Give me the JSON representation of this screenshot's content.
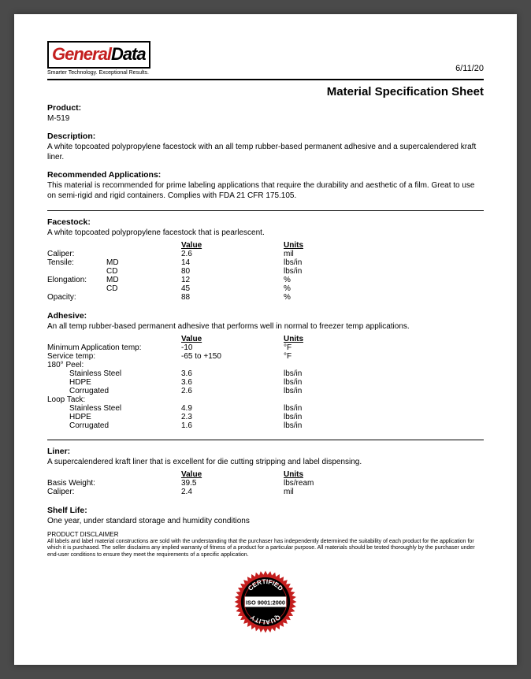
{
  "header": {
    "logo_general": "General",
    "logo_data": "Data",
    "tagline": "Smarter Technology. Exceptional Results.",
    "date": "6/11/20"
  },
  "title": "Material Specification Sheet",
  "product": {
    "label": "Product:",
    "value": "M-519"
  },
  "description": {
    "label": "Description:",
    "value": "A white topcoated polypropylene facestock with an all temp rubber-based permanent adhesive and a supercalendered kraft liner."
  },
  "recommended": {
    "label": "Recommended Applications:",
    "value": "This material is recommended for prime labeling applications that require the durability and aesthetic of a film. Great to use on semi-rigid and rigid containers. Complies with FDA 21 CFR 175.105."
  },
  "facestock": {
    "label": "Facestock:",
    "text": "A white topcoated polypropylene facestock that is pearlescent.",
    "head_value": "Value",
    "head_units": "Units",
    "rows": [
      {
        "name": "Caliper:",
        "sub": "",
        "value": "2.6",
        "units": "mil"
      },
      {
        "name": "Tensile:",
        "sub": "MD",
        "value": "14",
        "units": "lbs/in"
      },
      {
        "name": "",
        "sub": "CD",
        "value": "80",
        "units": "lbs/in"
      },
      {
        "name": "Elongation:",
        "sub": "MD",
        "value": "12",
        "units": "%"
      },
      {
        "name": "",
        "sub": "CD",
        "value": "45",
        "units": "%"
      },
      {
        "name": "Opacity:",
        "sub": "",
        "value": "88",
        "units": "%"
      }
    ]
  },
  "adhesive": {
    "label": "Adhesive:",
    "text": "An all temp rubber-based permanent adhesive that performs well in normal to freezer temp applications.",
    "head_value": "Value",
    "head_units": "Units",
    "rows": [
      {
        "name": "Minimum Application temp:",
        "value": "-10",
        "units": "°F"
      },
      {
        "name": "Service temp:",
        "value": "-65 to +150",
        "units": "°F"
      },
      {
        "name": "180° Peel:",
        "value": "",
        "units": ""
      }
    ],
    "peel": [
      {
        "name": "Stainless Steel",
        "value": "3.6",
        "units": "lbs/in"
      },
      {
        "name": "HDPE",
        "value": "3.6",
        "units": "lbs/in"
      },
      {
        "name": "Corrugated",
        "value": "2.6",
        "units": "lbs/in"
      }
    ],
    "loop_label": "Loop Tack:",
    "loop": [
      {
        "name": "Stainless Steel",
        "value": "4.9",
        "units": "lbs/in"
      },
      {
        "name": "HDPE",
        "value": "2.3",
        "units": "lbs/in"
      },
      {
        "name": "Corrugated",
        "value": "1.6",
        "units": "lbs/in"
      }
    ]
  },
  "liner": {
    "label": "Liner:",
    "text": "A supercalendered kraft liner that is excellent for die cutting stripping and label dispensing.",
    "head_value": "Value",
    "head_units": "Units",
    "rows": [
      {
        "name": "Basis Weight:",
        "value": "39.5",
        "units": "lbs/ream"
      },
      {
        "name": "Caliper:",
        "value": "2.4",
        "units": "mil"
      }
    ]
  },
  "shelf": {
    "label": "Shelf Life:",
    "value": "One year, under standard storage and humidity conditions"
  },
  "disclaimer": {
    "label": "PRODUCT DISCLAIMER",
    "text": "All labels and label material constructions are sold with the understanding that the purchaser has independently determined the suitability of each product for the application for which it is purchased. The seller disclaims any implied warranty of fitness of a product for a particular purpose. All materials should be tested thoroughly by the purchaser under end-user conditions to ensure they meet the requirements of a specific application."
  },
  "badge": {
    "top": "CERTIFIED",
    "mid": "ISO 9001:2000",
    "bottom": "QUALITY",
    "outer_color": "#c41e1e",
    "inner_color": "#000000",
    "text_color": "#ffffff"
  }
}
